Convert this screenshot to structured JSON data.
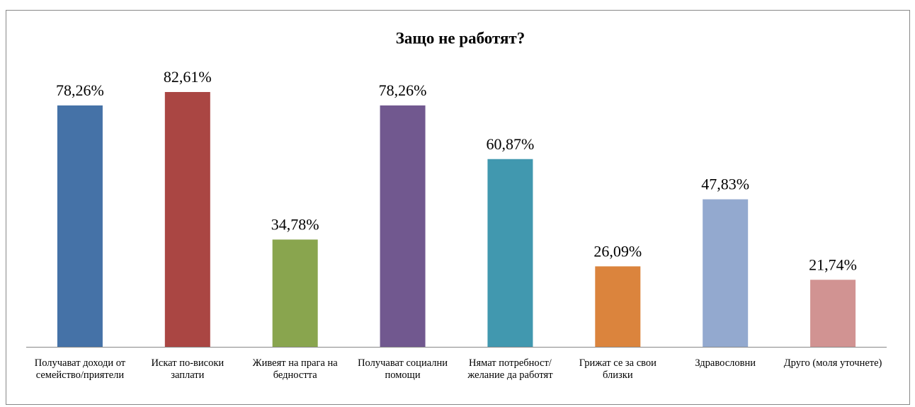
{
  "chart_data": {
    "type": "bar",
    "title": "Защо не работят?",
    "categories": [
      "Получават доходи от семейство/приятели",
      "Искат по-високи заплати",
      "Живеят на прага на бедността",
      "Получават социални помощи",
      "Нямат потребност/желание да работят",
      "Грижат се за свои близки",
      "Здравословни",
      "Друго (моля уточнете)"
    ],
    "values": [
      78.26,
      82.61,
      34.78,
      78.26,
      60.87,
      26.09,
      47.83,
      21.74
    ],
    "value_labels": [
      "78,26%",
      "82,61%",
      "34,78%",
      "78,26%",
      "60,87%",
      "26,09%",
      "47,83%",
      "21,74%"
    ],
    "colors": [
      "#4572a7",
      "#aa4643",
      "#89a54e",
      "#71588f",
      "#4198af",
      "#db843d",
      "#93a9cf",
      "#d19392"
    ]
  }
}
